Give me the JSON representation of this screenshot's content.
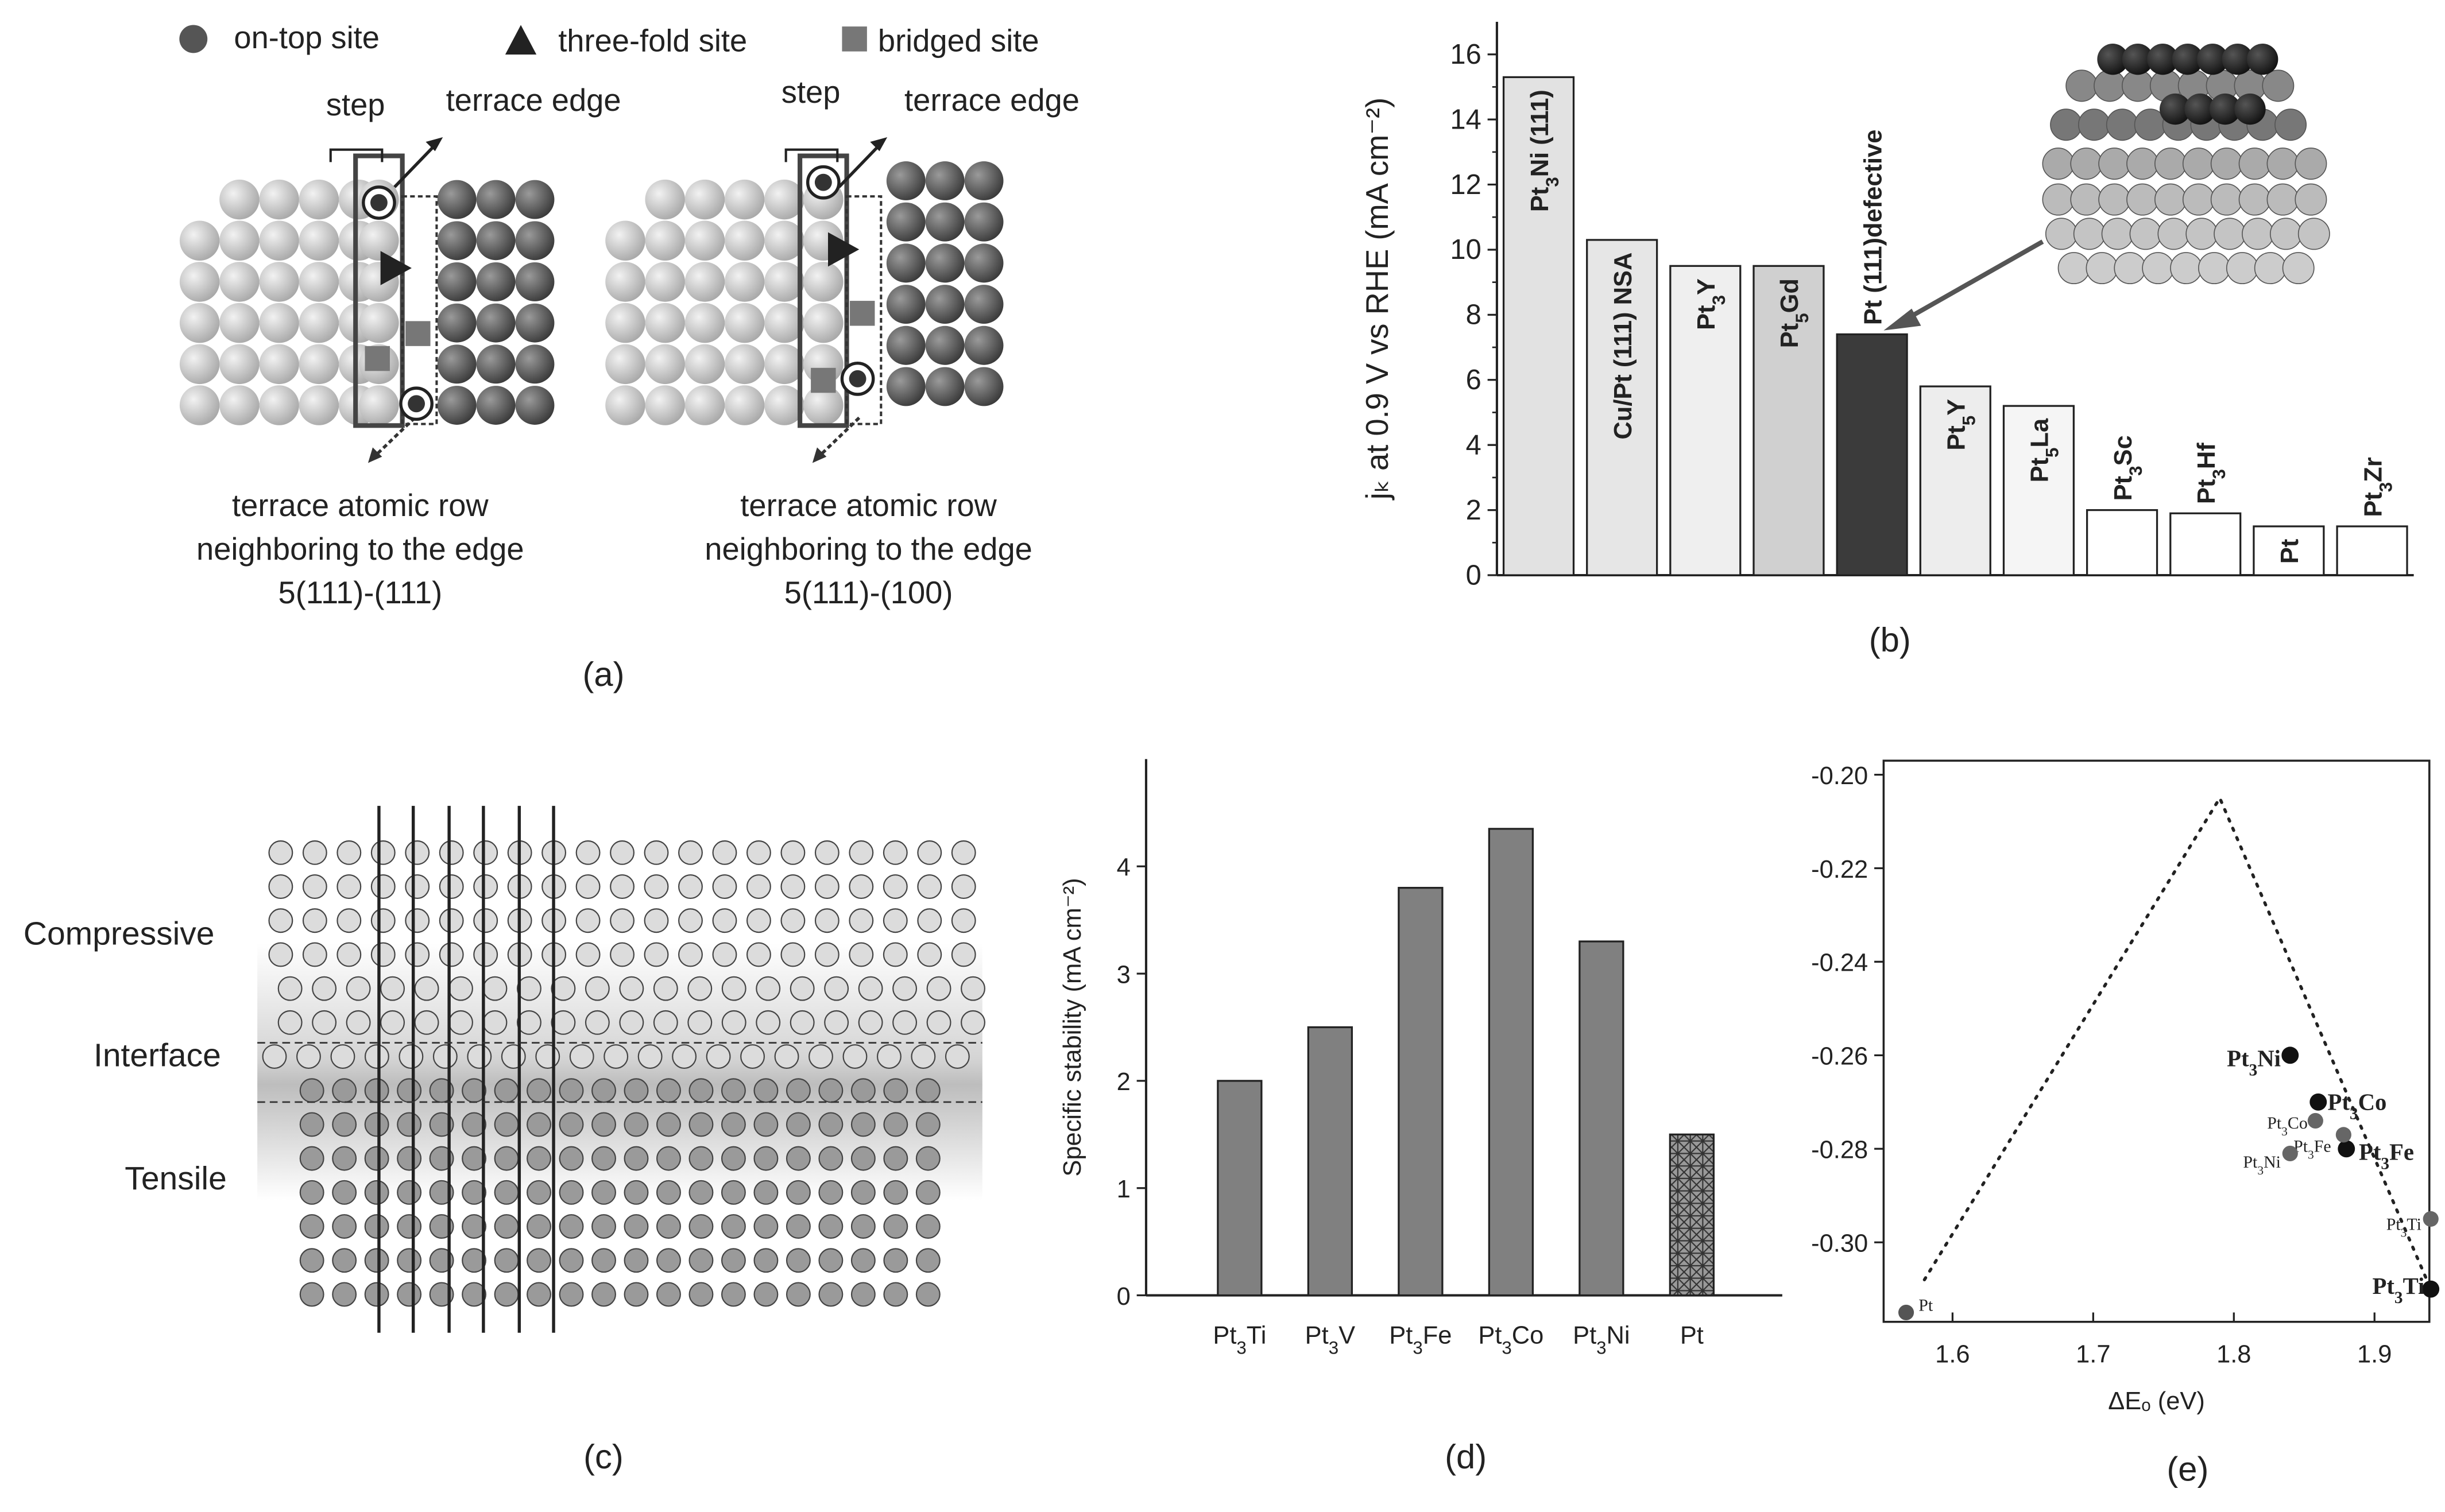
{
  "panel_a": {
    "legend": [
      "on-top site",
      "three-fold site",
      "bridged site"
    ],
    "left": {
      "step": "step",
      "edge": "terrace edge",
      "caption": [
        "terrace atomic row",
        "neighboring to the edge",
        "5(111)-(111)"
      ]
    },
    "right": {
      "step": "step",
      "edge": "terrace edge",
      "caption": [
        "terrace atomic row",
        "neighboring to the edge",
        "5(111)-(100)"
      ]
    },
    "label": "(a)"
  },
  "panel_c": {
    "labels": [
      "Compressive",
      "Interface",
      "Tensile"
    ],
    "label": "(c)"
  },
  "chart_data": [
    {
      "type": "bar",
      "label": "(b)",
      "ylabel": "jₖ at 0.9 V vs RHE (mA cm⁻²)",
      "categories": [
        "Pt3Ni (111)",
        "Cu/Pt (111) NSA",
        "Pt3Y",
        "Pt5Gd",
        "Pt (111)defective",
        "Pt5Y",
        "Pt5La",
        "Pt3Sc",
        "Pt3Hf",
        "Pt",
        "Pt3Zr"
      ],
      "values": [
        15.3,
        10.3,
        9.5,
        9.5,
        7.4,
        5.8,
        5.2,
        2.0,
        1.9,
        1.5,
        1.5
      ],
      "colors": [
        "#e2e2e2",
        "#e6e6e6",
        "#efefef",
        "#d0d0d0",
        "#3b3b3b",
        "#ededed",
        "#f5f5f5",
        "#ffffff",
        "#ffffff",
        "#ffffff",
        "#ffffff"
      ],
      "ylim": [
        0,
        17
      ],
      "yticks": [
        0,
        2,
        4,
        6,
        8,
        10,
        12,
        14,
        16
      ]
    },
    {
      "type": "bar",
      "label": "(d)",
      "ylabel": "Specific stability (mA cm⁻²)",
      "categories": [
        "Pt3Ti",
        "Pt3V",
        "Pt3Fe",
        "Pt3Co",
        "Pt3Ni",
        "Pt"
      ],
      "values": [
        2.0,
        2.5,
        3.8,
        4.35,
        3.3,
        1.5
      ],
      "colors": [
        "#808080",
        "#808080",
        "#808080",
        "#808080",
        "#808080",
        "#909090"
      ],
      "hatch": [
        false,
        false,
        false,
        false,
        false,
        true
      ],
      "ylim": [
        0,
        5
      ],
      "yticks": [
        0,
        1,
        2,
        3,
        4
      ]
    },
    {
      "type": "scatter",
      "label": "(e)",
      "xlabel": "ΔEₒ (eV)",
      "xlim": [
        1.551,
        1.939
      ],
      "ylim": [
        -0.317,
        -0.197
      ],
      "xticks": [
        1.6,
        1.7,
        1.8,
        1.9
      ],
      "yticks": [
        {
          "value": -0.2,
          "label": "-0.20"
        },
        -0.22,
        -0.24,
        -0.26,
        -0.28,
        {
          "value": -0.3,
          "label": "-0.30"
        }
      ],
      "line": {
        "x": [
          1.58,
          1.79,
          1.94
        ],
        "y": [
          -0.308,
          -0.205,
          -0.31
        ]
      },
      "points": {
        "labels": [
          "Pt",
          "Pt3Ni",
          "Pt3Co",
          "Pt3Fe",
          "Pt3Ti",
          "Pt3Co",
          "Pt3Fe",
          "Pt3Ni",
          "Pt3Ti"
        ],
        "x": [
          1.567,
          1.84,
          1.86,
          1.88,
          1.94,
          1.858,
          1.878,
          1.84,
          1.94
        ],
        "y": [
          -0.315,
          -0.26,
          -0.27,
          -0.28,
          -0.31,
          -0.274,
          -0.277,
          -0.281,
          -0.295
        ],
        "colors": [
          "#555555",
          "#111111",
          "#111111",
          "#111111",
          "#111111",
          "#666666",
          "#666666",
          "#666666",
          "#666666"
        ]
      }
    }
  ]
}
